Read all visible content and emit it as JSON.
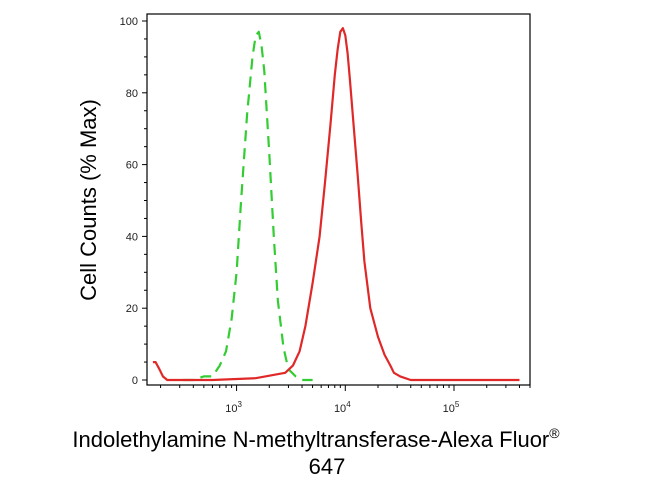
{
  "chart_data": {
    "type": "line",
    "title": "",
    "xlabel": "Indolethylamine N-methyltransferase-Alexa Fluor",
    "xlabel_superscript": "®",
    "xlabel_line2": "647",
    "ylabel": "Cell Counts (% Max)",
    "x_scale": "log",
    "xlim": [
      150,
      500000
    ],
    "ylim": [
      0,
      100
    ],
    "y_ticks": [
      "0",
      "20",
      "40",
      "60",
      "80",
      "100"
    ],
    "x_ticks": [
      {
        "base": "10",
        "exp": "3",
        "value": 1000
      },
      {
        "base": "10",
        "exp": "4",
        "value": 10000
      },
      {
        "base": "10",
        "exp": "5",
        "value": 100000
      }
    ],
    "grid": false,
    "series": [
      {
        "color": "#33cc33",
        "dash": "dashed",
        "x": [
          320,
          400,
          500,
          600,
          700,
          800,
          900,
          1000,
          1100,
          1250,
          1400,
          1500,
          1600,
          1700,
          1800,
          2000,
          2200,
          2400,
          2700,
          3000,
          3500,
          4000,
          5000
        ],
        "y": [
          0,
          0,
          1,
          1,
          4,
          8,
          17,
          30,
          50,
          74,
          90,
          96,
          97,
          93,
          86,
          63,
          40,
          22,
          9,
          3,
          1,
          0,
          0
        ]
      },
      {
        "color": "#e02828",
        "dash": "solid",
        "x": [
          170,
          180,
          195,
          210,
          230,
          300,
          600,
          1500,
          2800,
          3300,
          3800,
          4300,
          5000,
          5800,
          6500,
          7300,
          8000,
          8500,
          9000,
          9500,
          10000,
          10500,
          11000,
          12000,
          13000,
          14000,
          15000,
          17000,
          20000,
          23000,
          26000,
          28000,
          32000,
          40000,
          100000,
          400000
        ],
        "y": [
          5,
          5,
          3,
          1,
          0,
          0,
          0,
          0.5,
          2,
          4,
          8,
          15,
          27,
          40,
          55,
          71,
          85,
          92,
          97,
          98,
          96,
          91,
          84,
          70,
          57,
          44,
          33,
          20,
          12,
          7,
          4,
          2,
          1,
          0,
          0,
          0
        ]
      }
    ]
  }
}
